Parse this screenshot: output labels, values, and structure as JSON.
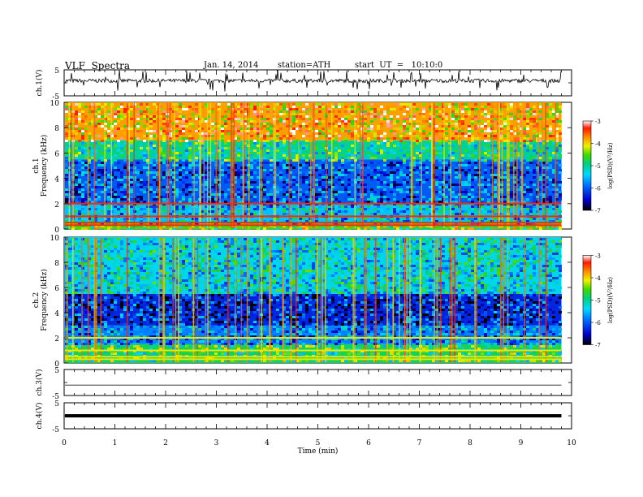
{
  "header": {
    "title": "VLF  Spectra",
    "date": "Jan. 14, 2014",
    "station": "station=ATH",
    "start": "start  UT  =   10:10:0"
  },
  "chart_data": [
    {
      "type": "line",
      "panel": "ch1-waveform",
      "ylabel": "ch.1(V)",
      "ylim": [
        -5,
        5
      ],
      "yticks": [
        "5",
        "-5"
      ],
      "xlim": [
        0,
        10
      ],
      "trace": "noisy signal around ~1 V with intermittent negative spikes",
      "data_end_min": 9.8
    },
    {
      "type": "heatmap",
      "panel": "ch1-spectrogram",
      "ylabel": "ch.1\nFrequency (kHz)",
      "ylim": [
        0,
        10
      ],
      "yticks": [
        "0",
        "2",
        "4",
        "6",
        "8",
        "10"
      ],
      "xlim": [
        0,
        10
      ],
      "colorbar": {
        "label": "log(PSD)(V²/Hz)",
        "range": [
          -7,
          -3
        ],
        "ticks": [
          "-3",
          "-4",
          "-5",
          "-6",
          "-7"
        ]
      },
      "bands": [
        {
          "f_khz": [
            0,
            0.5
          ],
          "log_psd": -4.5
        },
        {
          "f_khz": [
            0.5,
            2
          ],
          "log_psd": -5.5
        },
        {
          "f_khz": [
            2,
            5.5
          ],
          "log_psd": -6.0
        },
        {
          "f_khz": [
            5.5,
            7
          ],
          "log_psd": -5.0
        },
        {
          "f_khz": [
            7,
            10
          ],
          "log_psd": -3.8
        }
      ]
    },
    {
      "type": "heatmap",
      "panel": "ch2-spectrogram",
      "ylabel": "ch.2\nFrequency (kHz)",
      "ylim": [
        0,
        10
      ],
      "yticks": [
        "0",
        "2",
        "4",
        "6",
        "8",
        "10"
      ],
      "xlim": [
        0,
        10
      ],
      "colorbar": {
        "label": "log(PSD)(V²/Hz)",
        "range": [
          -7,
          -3
        ],
        "ticks": [
          "-3",
          "-4",
          "-5",
          "-6",
          "-7"
        ]
      },
      "bands": [
        {
          "f_khz": [
            0,
            1.5
          ],
          "log_psd": -4.8
        },
        {
          "f_khz": [
            1.5,
            3
          ],
          "log_psd": -5.8
        },
        {
          "f_khz": [
            3,
            5.5
          ],
          "log_psd": -6.3
        },
        {
          "f_khz": [
            5.5,
            10
          ],
          "log_psd": -5.3
        }
      ]
    },
    {
      "type": "line",
      "panel": "ch3-waveform",
      "ylabel": "ch.3(V)",
      "ylim": [
        -5,
        5
      ],
      "yticks": [
        "5",
        "-5"
      ],
      "xlim": [
        0,
        10
      ],
      "trace": "flat near -1 V",
      "data_end_min": 9.8
    },
    {
      "type": "line",
      "panel": "ch4-waveform",
      "ylabel": "ch.4(V)",
      "ylim": [
        -5,
        5
      ],
      "yticks": [
        "5",
        "-5"
      ],
      "xlim": [
        0,
        10
      ],
      "xlabel": "Time  (min)",
      "xticks": [
        "0",
        "1",
        "2",
        "3",
        "4",
        "5",
        "6",
        "7",
        "8",
        "9",
        "10"
      ],
      "trace": "thick flat line near 0 V",
      "data_end_min": 9.8
    }
  ]
}
